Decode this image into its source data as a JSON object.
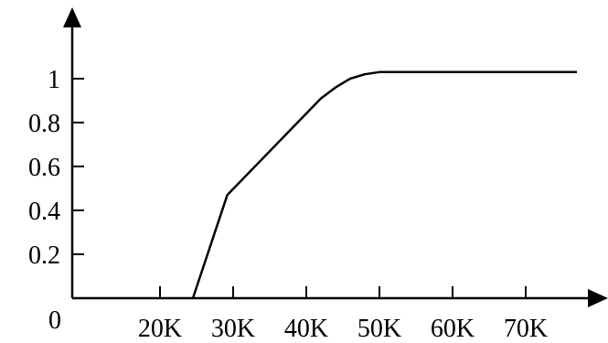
{
  "chart_data": {
    "type": "line",
    "title": "",
    "xlabel": "",
    "ylabel": "",
    "x_origin_label": "0",
    "x_ticks": [
      {
        "value": 20000,
        "label": "20K"
      },
      {
        "value": 30000,
        "label": "30K"
      },
      {
        "value": 40000,
        "label": "40K"
      },
      {
        "value": 50000,
        "label": "50K"
      },
      {
        "value": 60000,
        "label": "60K"
      },
      {
        "value": 70000,
        "label": "70K"
      }
    ],
    "y_ticks": [
      {
        "value": 0.2,
        "label": "0.2"
      },
      {
        "value": 0.4,
        "label": "0.4"
      },
      {
        "value": 0.6,
        "label": "0.6"
      },
      {
        "value": 0.8,
        "label": "0.8"
      },
      {
        "value": 1.0,
        "label": "1"
      }
    ],
    "xlim": [
      8000,
      80000
    ],
    "ylim": [
      0,
      1.2
    ],
    "grid": false,
    "series": [
      {
        "x": [
          24500,
          29200,
          42000,
          44000,
          46000,
          48000,
          50000,
          60000,
          70000,
          77000
        ],
        "y": [
          0,
          0.47,
          0.91,
          0.96,
          1.0,
          1.02,
          1.03,
          1.03,
          1.03,
          1.03
        ]
      }
    ],
    "colors": {
      "line": "#000000",
      "axis": "#000000"
    }
  }
}
